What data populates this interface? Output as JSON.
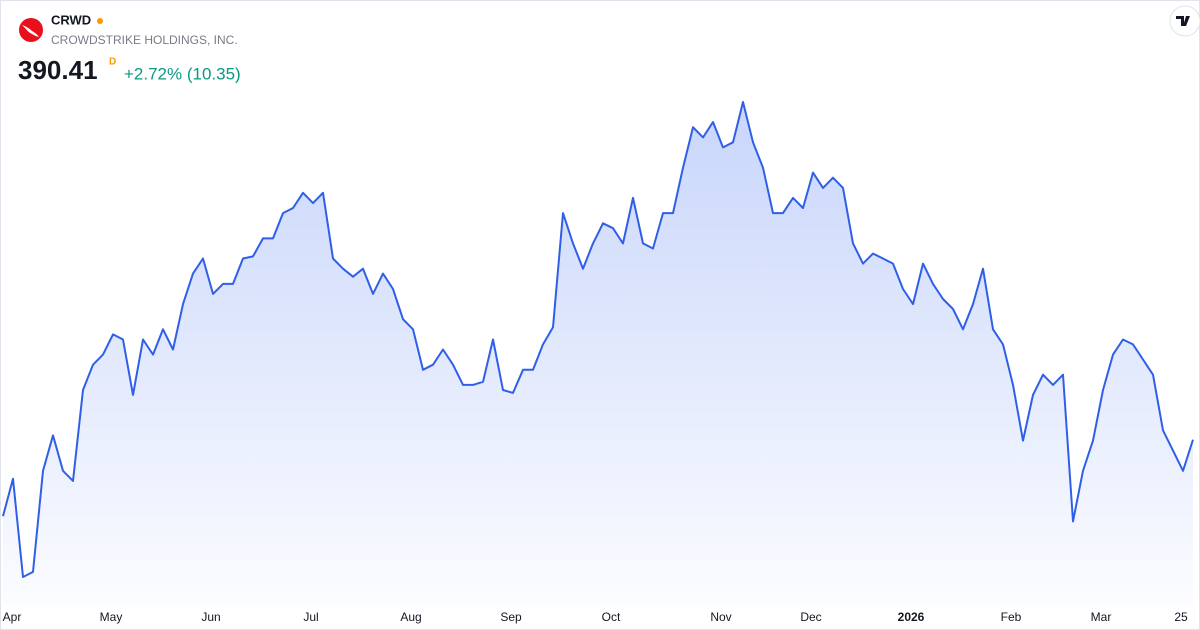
{
  "header": {
    "ticker": "CRWD",
    "name": "CROWDSTRIKE HOLDINGS, INC.",
    "price": "390.41",
    "interval": "D",
    "change": "+2.72% (10.35)"
  },
  "chart_data": {
    "type": "area",
    "color": "#2f5fe8",
    "values": [
      353.0,
      371.3,
      323.3,
      325.8,
      375.2,
      392.5,
      375.2,
      370.3,
      414.7,
      427.1,
      432.0,
      441.9,
      439.4,
      412.3,
      439.4,
      432.0,
      444.4,
      434.5,
      456.7,
      471.6,
      479.0,
      461.7,
      466.6,
      466.6,
      479.0,
      480.0,
      488.8,
      488.8,
      501.2,
      503.7,
      511.1,
      506.1,
      511.1,
      479.0,
      474.0,
      470.1,
      474.0,
      461.7,
      471.6,
      464.1,
      449.3,
      444.4,
      424.6,
      427.1,
      434.5,
      427.1,
      417.2,
      417.2,
      418.7,
      439.4,
      414.7,
      413.3,
      424.6,
      424.6,
      437.0,
      445.4,
      501.2,
      486.4,
      474.0,
      486.4,
      496.2,
      493.8,
      486.4,
      508.6,
      486.4,
      483.9,
      501.2,
      501.2,
      523.4,
      543.2,
      538.2,
      545.7,
      533.3,
      535.8,
      555.5,
      535.8,
      523.4,
      501.2,
      501.2,
      508.6,
      503.7,
      521.0,
      513.5,
      518.5,
      513.5,
      486.4,
      476.5,
      481.4,
      479.0,
      476.5,
      464.1,
      456.7,
      476.5,
      466.6,
      459.2,
      454.3,
      444.4,
      456.7,
      474.0,
      444.4,
      437.0,
      417.2,
      390.0,
      412.3,
      422.2,
      417.2,
      422.2,
      350.5,
      375.2,
      390.0,
      414.7,
      432.0,
      439.4,
      437.0,
      429.6,
      422.2,
      395.0,
      385.1,
      375.2,
      390.41
    ],
    "xticks": [
      {
        "value": 0,
        "label": "Apr"
      },
      {
        "value": 10,
        "label": "May"
      },
      {
        "value": 20,
        "label": "Jun"
      },
      {
        "value": 30,
        "label": "Jul"
      },
      {
        "value": 40,
        "label": "Aug"
      },
      {
        "value": 50,
        "label": "Sep"
      },
      {
        "value": 60,
        "label": "Oct"
      },
      {
        "value": 71,
        "label": "Nov"
      },
      {
        "value": 80,
        "label": "Dec"
      },
      {
        "value": 90,
        "label": "2026"
      },
      {
        "value": 100,
        "label": "Feb"
      },
      {
        "value": 109,
        "label": "Mar"
      },
      {
        "value": 117,
        "label": "25"
      }
    ]
  }
}
